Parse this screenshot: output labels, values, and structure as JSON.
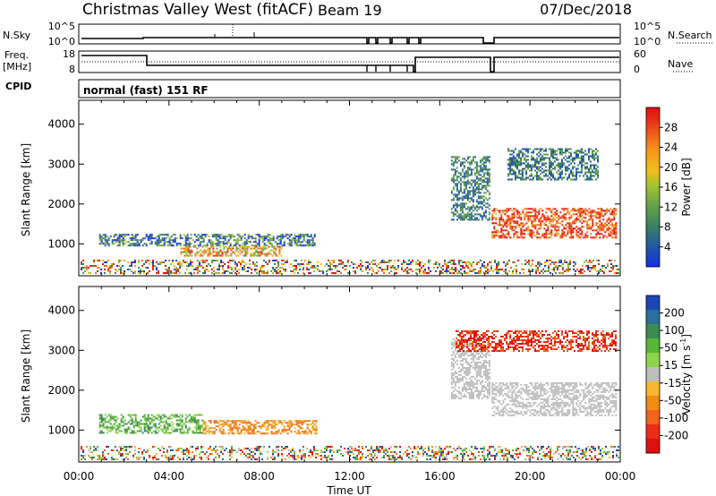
{
  "header": {
    "station": "Christmas Valley West (fitACF)",
    "beam": "Beam 19",
    "date": "07/Dec/2018"
  },
  "panels": {
    "nsky": {
      "label": "N.Sky",
      "ticks": [
        "10^5",
        "10^0"
      ],
      "right_ticks": [
        "10^5",
        "10^0"
      ],
      "right_label": "N.Search"
    },
    "freq": {
      "label_line1": "Freq.",
      "label_line2": "[MHz]",
      "ticks": [
        "18",
        "8"
      ],
      "right_ticks": [
        "60",
        "0"
      ],
      "right_label": "Nave"
    },
    "cpid": {
      "label": "CPID",
      "text": "normal (fast) 151 RF"
    }
  },
  "chart_data": [
    {
      "type": "heatmap",
      "name": "power",
      "ylabel": "Slant Range [km]",
      "xlabel": "",
      "yticks": [
        "4000",
        "3000",
        "2000",
        "1000"
      ],
      "ylim": [
        200,
        4600
      ],
      "colorbar": {
        "label": "Power [dB]",
        "ticks": [
          "28",
          "24",
          "20",
          "16",
          "12",
          "8",
          "4"
        ],
        "colors": [
          "#1530e0",
          "#2156a8",
          "#3a7e64",
          "#64a14c",
          "#9cc234",
          "#f0bf1c",
          "#f49a1c",
          "#f0661c",
          "#ec2c16",
          "#e01010"
        ]
      },
      "regions": [
        {
          "t0": 0.9,
          "t1": 10.5,
          "r0": 950,
          "r1": 1250,
          "level": "mid"
        },
        {
          "t0": 4.5,
          "t1": 9.0,
          "r0": 700,
          "r1": 950,
          "level": "high"
        },
        {
          "t0": 18.3,
          "t1": 23.8,
          "r0": 1150,
          "r1": 1900,
          "level": "very-high"
        },
        {
          "t0": 16.5,
          "t1": 18.2,
          "r0": 1600,
          "r1": 3200,
          "level": "low"
        },
        {
          "t0": 19.0,
          "t1": 23.0,
          "r0": 2600,
          "r1": 3400,
          "level": "low"
        }
      ]
    },
    {
      "type": "heatmap",
      "name": "velocity",
      "ylabel": "Slant Range [km]",
      "xlabel": "Time UT",
      "yticks": [
        "4000",
        "3000",
        "2000",
        "1000"
      ],
      "xticks": [
        "00:00",
        "04:00",
        "08:00",
        "12:00",
        "16:00",
        "20:00",
        "00:00"
      ],
      "ylim": [
        200,
        4600
      ],
      "xlim": [
        0,
        24
      ],
      "colorbar": {
        "label": "Velocity [m s",
        "label_sup": "-1",
        "label_close": "]",
        "ticks": [
          "200",
          "100",
          "50",
          "15",
          "-15",
          "-50",
          "-100",
          "-200"
        ],
        "colors": [
          "#1f45b4",
          "#2a6e9a",
          "#3b8a52",
          "#59b63a",
          "#8ed44c",
          "#bebebe",
          "#f6b830",
          "#f08c14",
          "#f0641e",
          "#ec2c18",
          "#e01010"
        ]
      },
      "regions": [
        {
          "t0": 0.9,
          "t1": 5.5,
          "r0": 950,
          "r1": 1400,
          "level": "positive"
        },
        {
          "t0": 5.5,
          "t1": 10.5,
          "r0": 900,
          "r1": 1250,
          "level": "negative"
        },
        {
          "t0": 18.3,
          "t1": 23.8,
          "r0": 1350,
          "r1": 2200,
          "level": "zero"
        },
        {
          "t0": 16.5,
          "t1": 18.2,
          "r0": 1800,
          "r1": 3300,
          "level": "zero"
        },
        {
          "t0": 16.7,
          "t1": 23.8,
          "r0": 3000,
          "r1": 3500,
          "level": "strong-negative"
        }
      ]
    }
  ]
}
